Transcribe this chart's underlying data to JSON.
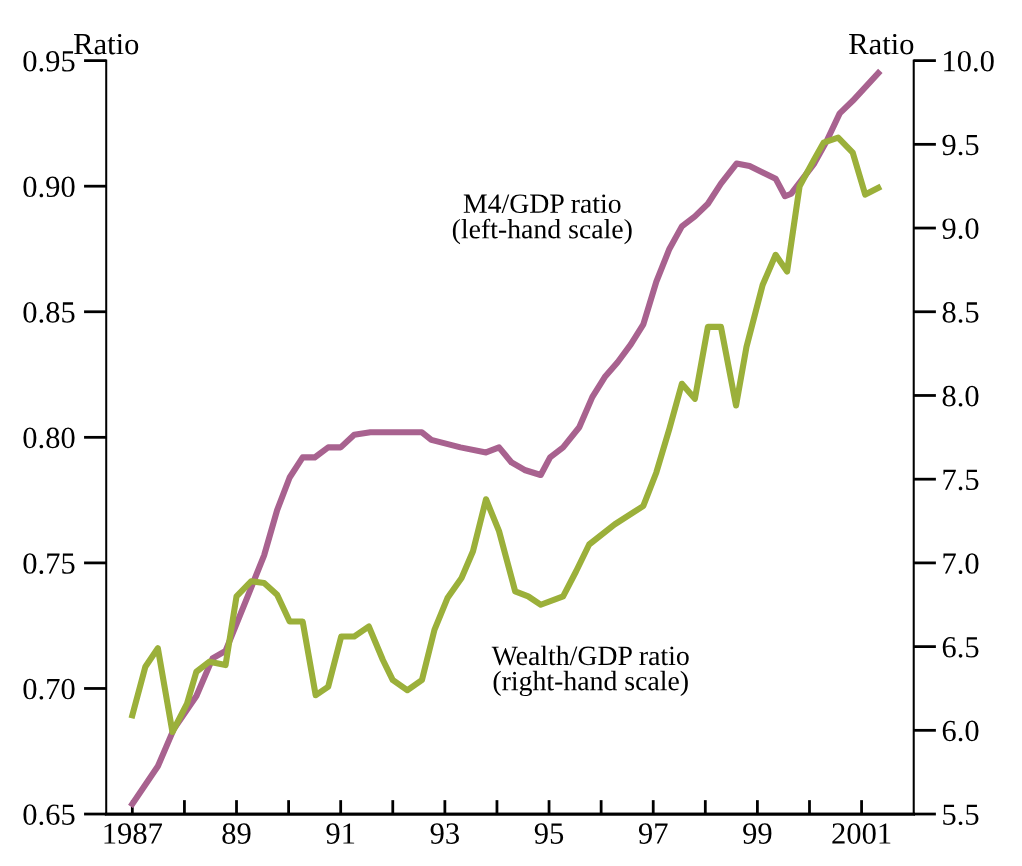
{
  "chart_data": {
    "type": "line",
    "ylabel": "Ratio",
    "y2label": "Ratio",
    "xlim": [
      1986.5,
      2002
    ],
    "xticks": [
      1987,
      {
        "value": 1988,
        "label": null
      },
      {
        "value": 1989,
        "label": "89"
      },
      {
        "value": 1990,
        "label": null
      },
      {
        "value": 1991,
        "label": "91"
      },
      {
        "value": 1992,
        "label": null
      },
      {
        "value": 1993,
        "label": "93"
      },
      {
        "value": 1994,
        "label": null
      },
      {
        "value": 1995,
        "label": "95"
      },
      {
        "value": 1996,
        "label": null
      },
      {
        "value": 1997,
        "label": "97"
      },
      {
        "value": 1998,
        "label": null
      },
      {
        "value": 1999,
        "label": "99"
      },
      {
        "value": 2000,
        "label": null
      },
      2001
    ],
    "ylim": [
      0.65,
      0.95
    ],
    "yticks": [
      0.65,
      {
        "value": 0.7,
        "label": "0.70"
      },
      0.75,
      {
        "value": 0.8,
        "label": "0.80"
      },
      0.85,
      {
        "value": 0.9,
        "label": "0.90"
      },
      0.95
    ],
    "y2lim": [
      5.5,
      10.0
    ],
    "y2ticks": [
      5.5,
      {
        "value": 6,
        "label": "6.0"
      },
      6.5,
      {
        "value": 7,
        "label": "7.0"
      },
      7.5,
      {
        "value": 8,
        "label": "8.0"
      },
      8.5,
      {
        "value": 9,
        "label": "9.0"
      },
      9.5,
      {
        "value": 10,
        "label": "10.0"
      }
    ],
    "grid": false,
    "legend": false,
    "line_style": "solid",
    "marker": "none",
    "series": [
      {
        "name": "M4/GDP ratio\n(left-hand scale)",
        "color": "#a8628f",
        "x": [
          1987.0,
          1987.49,
          1987.8,
          1988.23,
          1988.54,
          1988.79,
          1989.22,
          1989.53,
          1989.78,
          1990.02,
          1990.27,
          1990.5,
          1990.76,
          1991.0,
          1991.26,
          1991.57,
          1992.56,
          1992.74,
          1993.3,
          1993.79,
          1994.04,
          1994.28,
          1994.53,
          1994.84,
          1995.02,
          1995.27,
          1995.58,
          1995.83,
          1996.07,
          1996.32,
          1996.57,
          1996.81,
          1997.06,
          1997.31,
          1997.55,
          1997.8,
          1998.05,
          1998.3,
          1998.6,
          1998.85,
          1999.35,
          1999.53,
          1999.65,
          2000.09,
          2000.33,
          2000.58,
          2000.83,
          2001.32
        ],
        "values": [
          0.654,
          0.669,
          0.684,
          0.697,
          0.712,
          0.715,
          0.737,
          0.753,
          0.771,
          0.784,
          0.792,
          0.792,
          0.796,
          0.796,
          0.801,
          0.802,
          0.802,
          0.799,
          0.796,
          0.794,
          0.796,
          0.79,
          0.787,
          0.785,
          0.792,
          0.796,
          0.804,
          0.816,
          0.824,
          0.83,
          0.837,
          0.845,
          0.862,
          0.875,
          0.884,
          0.888,
          0.893,
          0.901,
          0.909,
          0.908,
          0.903,
          0.896,
          0.897,
          0.909,
          0.918,
          0.929,
          0.934,
          0.945
        ]
      },
      {
        "name": "Wealth/GDP ratio\n(right-hand scale)",
        "color": "#9bb03a",
        "axis": "y2",
        "x": [
          1987.0,
          1987.25,
          1987.49,
          1987.77,
          1988.05,
          1988.23,
          1988.48,
          1988.79,
          1989.0,
          1989.28,
          1989.53,
          1989.78,
          1990.02,
          1990.27,
          1990.52,
          1990.76,
          1991.01,
          1991.26,
          1991.54,
          1991.81,
          1992.0,
          1992.28,
          1992.56,
          1992.8,
          1993.05,
          1993.32,
          1993.54,
          1993.79,
          1994.04,
          1994.35,
          1994.6,
          1994.84,
          1995.27,
          1995.52,
          1995.77,
          1996.26,
          1996.81,
          1997.06,
          1997.31,
          1997.55,
          1997.8,
          1998.05,
          1998.3,
          1998.59,
          1998.79,
          1999.1,
          1999.35,
          1999.57,
          1999.81,
          2000.09,
          2000.27,
          2000.55,
          2000.83,
          2001.07,
          2001.32
        ],
        "values": [
          6.09,
          6.38,
          6.49,
          5.99,
          6.16,
          6.35,
          6.41,
          6.39,
          6.8,
          6.89,
          6.88,
          6.81,
          6.65,
          6.65,
          6.21,
          6.26,
          6.56,
          6.56,
          6.62,
          6.42,
          6.3,
          6.24,
          6.3,
          6.6,
          6.79,
          6.91,
          7.07,
          7.38,
          7.19,
          6.83,
          6.8,
          6.75,
          6.8,
          6.95,
          7.11,
          7.23,
          7.34,
          7.54,
          7.8,
          8.07,
          7.98,
          8.41,
          8.41,
          7.94,
          8.29,
          8.66,
          8.84,
          8.74,
          9.25,
          9.41,
          9.51,
          9.54,
          9.45,
          9.2,
          9.24
        ]
      }
    ]
  }
}
